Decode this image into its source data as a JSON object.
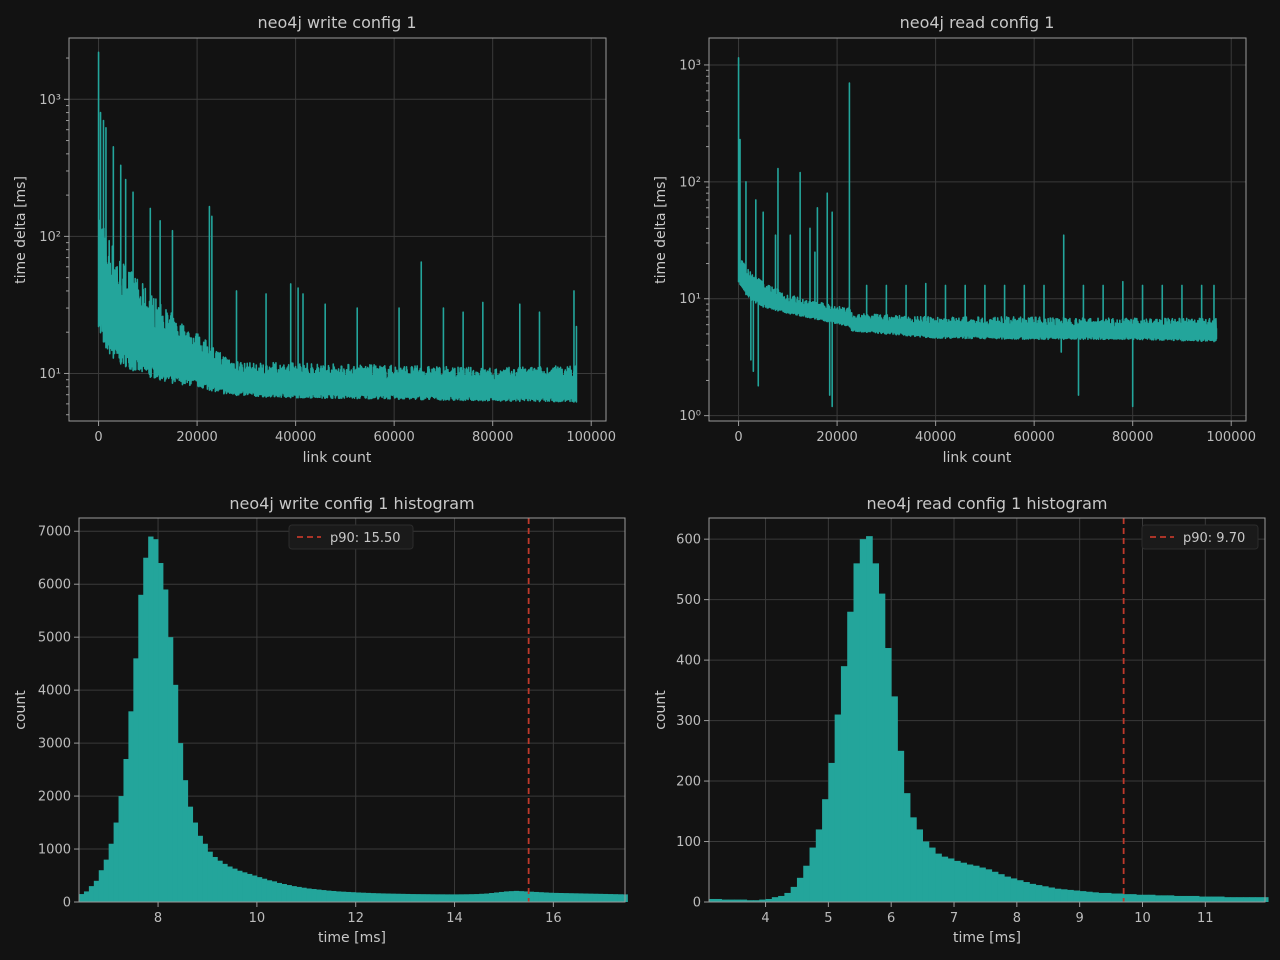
{
  "colors": {
    "background": "#121212",
    "axes_edge": "#9a9a9a",
    "grid": "#3a3a3a",
    "series": "#23a59b",
    "p90_line": "#c0392b"
  },
  "chart_data": [
    {
      "id": "write-ts",
      "type": "line",
      "title": "neo4j write config 1",
      "xlabel": "link count",
      "ylabel": "time delta [ms]",
      "xlim": [
        -6000,
        103000
      ],
      "ylim": [
        4.5,
        2800
      ],
      "yscale": "log",
      "grid": true,
      "xticks": [
        0,
        20000,
        40000,
        60000,
        80000,
        100000
      ],
      "xtick_labels": [
        "0",
        "20000",
        "40000",
        "60000",
        "80000",
        "100000"
      ],
      "yticks": [
        10,
        100,
        1000
      ],
      "ytick_labels": [
        "10¹",
        "10²",
        "10³"
      ],
      "floor": [
        [
          0,
          22
        ],
        [
          1000,
          17
        ],
        [
          2000,
          14
        ],
        [
          4000,
          12
        ],
        [
          7000,
          10.5
        ],
        [
          10000,
          9.5
        ],
        [
          15000,
          8.5
        ],
        [
          20000,
          8
        ],
        [
          26000,
          7
        ],
        [
          35000,
          6.7
        ],
        [
          60000,
          6.5
        ],
        [
          80000,
          6.3
        ],
        [
          97000,
          6.2
        ]
      ],
      "band_top": [
        [
          0,
          180
        ],
        [
          1000,
          140
        ],
        [
          2500,
          95
        ],
        [
          4000,
          75
        ],
        [
          6000,
          60
        ],
        [
          9000,
          45
        ],
        [
          12000,
          35
        ],
        [
          16000,
          25
        ],
        [
          20000,
          20
        ],
        [
          25000,
          14
        ],
        [
          30000,
          12
        ],
        [
          40000,
          12
        ],
        [
          60000,
          11.5
        ],
        [
          80000,
          11
        ],
        [
          97000,
          11.5
        ]
      ],
      "spikes": [
        [
          0,
          2200
        ],
        [
          400,
          800
        ],
        [
          1000,
          700
        ],
        [
          1500,
          620
        ],
        [
          3000,
          450
        ],
        [
          4500,
          330
        ],
        [
          5500,
          260
        ],
        [
          7000,
          210
        ],
        [
          10500,
          160
        ],
        [
          12500,
          130
        ],
        [
          15000,
          110
        ],
        [
          22500,
          165
        ],
        [
          23000,
          140
        ],
        [
          28000,
          40
        ],
        [
          34000,
          38
        ],
        [
          39000,
          45
        ],
        [
          40500,
          42
        ],
        [
          41500,
          38
        ],
        [
          46000,
          32
        ],
        [
          52500,
          30
        ],
        [
          61000,
          30
        ],
        [
          65500,
          65
        ],
        [
          70000,
          30
        ],
        [
          74000,
          28
        ],
        [
          78000,
          33
        ],
        [
          85500,
          32
        ],
        [
          89500,
          28
        ],
        [
          96500,
          40
        ],
        [
          97000,
          22
        ]
      ],
      "end_x": 97000
    },
    {
      "id": "read-ts",
      "type": "line",
      "title": "neo4j read config 1",
      "xlabel": "link count",
      "ylabel": "time delta [ms]",
      "xlim": [
        -6000,
        103000
      ],
      "ylim": [
        0.9,
        1700
      ],
      "yscale": "log",
      "grid": true,
      "xticks": [
        0,
        20000,
        40000,
        60000,
        80000,
        100000
      ],
      "xtick_labels": [
        "0",
        "20000",
        "40000",
        "60000",
        "80000",
        "100000"
      ],
      "yticks": [
        1,
        10,
        100,
        1000
      ],
      "ytick_labels": [
        "10⁰",
        "10¹",
        "10²",
        "10³"
      ],
      "floor": [
        [
          0,
          14
        ],
        [
          2000,
          10
        ],
        [
          5000,
          8.5
        ],
        [
          10000,
          7.5
        ],
        [
          15000,
          6.8
        ],
        [
          22500,
          5.8
        ],
        [
          23000,
          5.3
        ],
        [
          40000,
          4.6
        ],
        [
          60000,
          4.5
        ],
        [
          80000,
          4.5
        ],
        [
          97000,
          4.3
        ]
      ],
      "band_top": [
        [
          0,
          25
        ],
        [
          2000,
          18
        ],
        [
          5000,
          14
        ],
        [
          10000,
          11
        ],
        [
          15000,
          9.5
        ],
        [
          22500,
          8.5
        ],
        [
          23000,
          7.5
        ],
        [
          40000,
          7
        ],
        [
          60000,
          7
        ],
        [
          80000,
          6.8
        ],
        [
          97000,
          6.8
        ]
      ],
      "spikes": [
        [
          0,
          1150
        ],
        [
          300,
          230
        ],
        [
          1500,
          100
        ],
        [
          3500,
          70
        ],
        [
          5000,
          55
        ],
        [
          7500,
          35
        ],
        [
          8000,
          130
        ],
        [
          10500,
          35
        ],
        [
          12500,
          120
        ],
        [
          14500,
          40
        ],
        [
          15500,
          25
        ],
        [
          16000,
          60
        ],
        [
          18000,
          80
        ],
        [
          19000,
          55
        ],
        [
          22500,
          700
        ],
        [
          26000,
          13
        ],
        [
          30000,
          13
        ],
        [
          34000,
          13
        ],
        [
          38000,
          13.5
        ],
        [
          42000,
          13
        ],
        [
          46000,
          13
        ],
        [
          50000,
          13
        ],
        [
          54000,
          13
        ],
        [
          58000,
          13
        ],
        [
          62000,
          13
        ],
        [
          66000,
          35
        ],
        [
          70000,
          13
        ],
        [
          74000,
          13
        ],
        [
          78000,
          14
        ],
        [
          82000,
          13
        ],
        [
          86000,
          13
        ],
        [
          90000,
          13
        ],
        [
          94000,
          13
        ],
        [
          96500,
          13
        ]
      ],
      "dips": [
        [
          2500,
          3
        ],
        [
          3000,
          2.4
        ],
        [
          4000,
          1.8
        ],
        [
          18500,
          1.5
        ],
        [
          19000,
          1.2
        ],
        [
          65500,
          3.5
        ],
        [
          69000,
          1.5
        ],
        [
          80000,
          1.2
        ]
      ],
      "end_x": 97000
    },
    {
      "id": "write-hist",
      "type": "bar",
      "title": "neo4j write config 1 histogram",
      "xlabel": "time [ms]",
      "ylabel": "count",
      "xlim": [
        6.4,
        17.45
      ],
      "ylim": [
        0,
        7250
      ],
      "grid": true,
      "xticks": [
        8,
        10,
        12,
        14,
        16
      ],
      "xtick_labels": [
        "8",
        "10",
        "12",
        "14",
        "16"
      ],
      "yticks": [
        0,
        1000,
        2000,
        3000,
        4000,
        5000,
        6000,
        7000
      ],
      "ytick_labels": [
        "0",
        "1000",
        "2000",
        "3000",
        "4000",
        "5000",
        "6000",
        "7000"
      ],
      "bins": {
        "start": 6.4,
        "width": 0.1
      },
      "values": [
        150,
        200,
        300,
        400,
        600,
        800,
        1100,
        1500,
        2000,
        2700,
        3600,
        4600,
        5800,
        6500,
        6900,
        6850,
        6400,
        5900,
        5000,
        4100,
        3000,
        2300,
        1800,
        1500,
        1250,
        1100,
        950,
        850,
        780,
        720,
        670,
        630,
        590,
        560,
        530,
        500,
        470,
        440,
        410,
        390,
        360,
        340,
        320,
        300,
        285,
        270,
        255,
        245,
        235,
        225,
        215,
        208,
        200,
        195,
        190,
        185,
        180,
        176,
        172,
        168,
        165,
        162,
        160,
        158,
        156,
        154,
        152,
        150,
        149,
        148,
        147,
        146,
        145,
        145,
        144,
        144,
        144,
        145,
        146,
        148,
        150,
        155,
        160,
        170,
        180,
        190,
        200,
        205,
        210,
        205,
        200,
        195,
        190,
        185,
        180,
        175,
        172,
        170,
        168,
        166,
        164,
        162,
        160,
        158,
        156,
        154,
        152,
        150,
        148,
        146,
        144
      ],
      "vline": {
        "x": 15.5,
        "style": "dashed"
      },
      "legend": {
        "label": "p90: 15.50",
        "placement": "top-center"
      }
    },
    {
      "id": "read-hist",
      "type": "bar",
      "title": "neo4j read config 1 histogram",
      "xlabel": "time [ms]",
      "ylabel": "count",
      "xlim": [
        3.1,
        11.95
      ],
      "ylim": [
        0,
        635
      ],
      "grid": true,
      "xticks": [
        4,
        5,
        6,
        7,
        8,
        9,
        10,
        11
      ],
      "xtick_labels": [
        "4",
        "5",
        "6",
        "7",
        "8",
        "9",
        "10",
        "11"
      ],
      "yticks": [
        0,
        100,
        200,
        300,
        400,
        500,
        600
      ],
      "ytick_labels": [
        "0",
        "100",
        "200",
        "300",
        "400",
        "500",
        "600"
      ],
      "bins": {
        "start": 3.1,
        "width": 0.1
      },
      "values": [
        5,
        5,
        4,
        4,
        4,
        4,
        3,
        3,
        4,
        5,
        8,
        10,
        15,
        25,
        40,
        60,
        90,
        120,
        170,
        230,
        310,
        390,
        480,
        560,
        600,
        605,
        560,
        510,
        420,
        340,
        250,
        180,
        140,
        120,
        100,
        90,
        80,
        75,
        72,
        68,
        65,
        62,
        60,
        57,
        54,
        50,
        46,
        42,
        39,
        36,
        33,
        30,
        28,
        26,
        24,
        22,
        21,
        20,
        19,
        18,
        17,
        16,
        15,
        15,
        14,
        14,
        13,
        13,
        12,
        12,
        12,
        11,
        11,
        11,
        10,
        10,
        10,
        10,
        9,
        9,
        9,
        9,
        8,
        8,
        8,
        8,
        8,
        8,
        8
      ],
      "vline": {
        "x": 9.7,
        "style": "dashed"
      },
      "legend": {
        "label": "p90: 9.70",
        "placement": "top-right"
      }
    }
  ]
}
